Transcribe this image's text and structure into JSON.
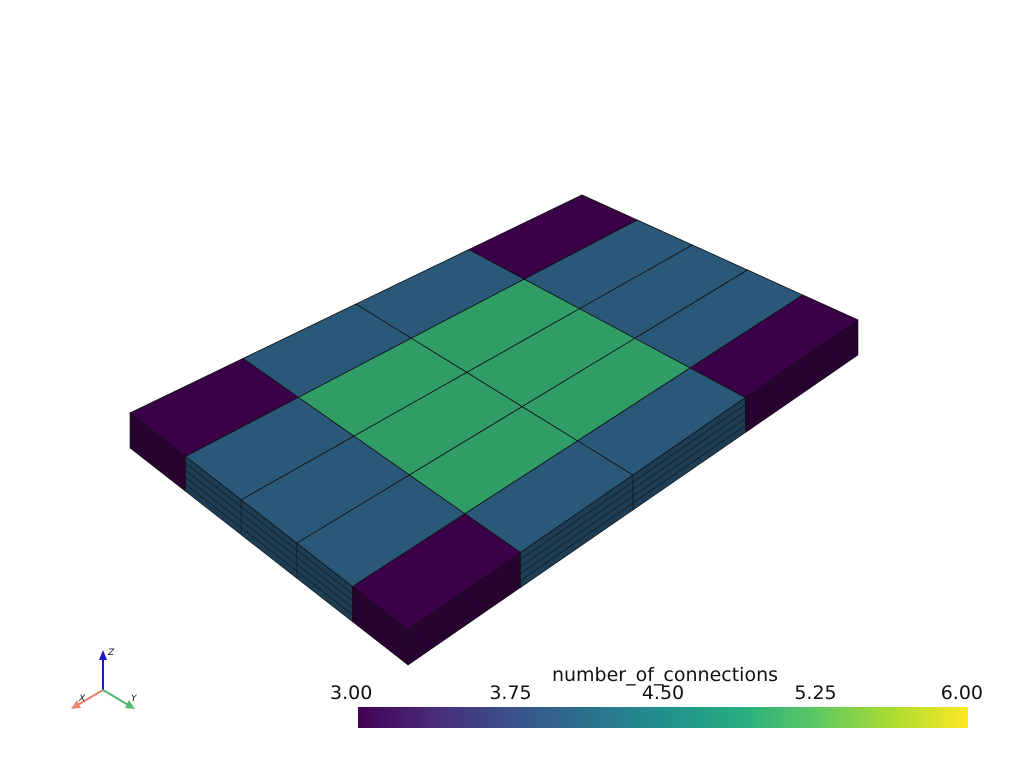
{
  "scene": {
    "top_face_values": [
      [
        3,
        4,
        4,
        3
      ],
      [
        4,
        5,
        5,
        4
      ],
      [
        4,
        5,
        5,
        4
      ],
      [
        4,
        5,
        5,
        4
      ],
      [
        3,
        4,
        4,
        3
      ]
    ]
  },
  "scalar_bar": {
    "title": "number_of_connections",
    "range": [
      3,
      6
    ],
    "ticks": [
      {
        "value": 3,
        "label": "3.00"
      },
      {
        "value": 3.75,
        "label": "3.75"
      },
      {
        "value": 4.5,
        "label": "4.50"
      },
      {
        "value": 5.25,
        "label": "5.25"
      },
      {
        "value": 6,
        "label": "6.00"
      }
    ]
  },
  "axes_widget": {
    "x": "X",
    "y": "Y",
    "z": "Z"
  }
}
